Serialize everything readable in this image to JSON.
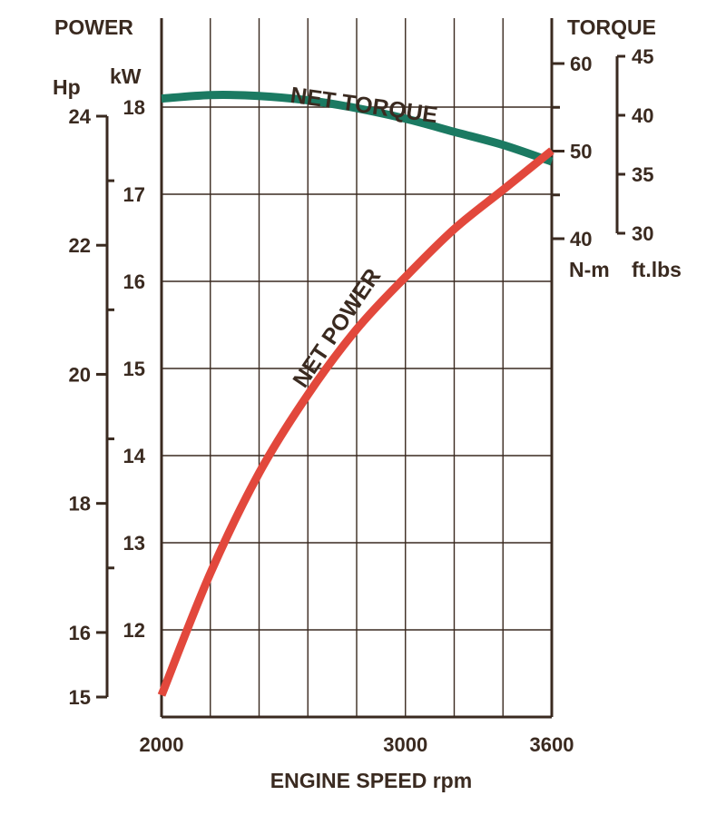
{
  "chart_data": {
    "type": "line",
    "xlabel": "ENGINE SPEED rpm",
    "xlim": [
      2000,
      3600
    ],
    "x_ticks": [
      2000,
      3000,
      3600
    ],
    "left_title": "POWER",
    "right_title": "TORQUE",
    "axes": {
      "hp": {
        "unit": "Hp",
        "ticks": [
          15,
          16,
          18,
          20,
          22,
          24
        ]
      },
      "kw": {
        "unit": "kW",
        "ylim": [
          11.2,
          18.8
        ],
        "ticks": [
          12,
          13,
          14,
          15,
          16,
          17,
          18
        ]
      },
      "nm": {
        "unit": "N-m",
        "ylim": [
          40,
          60
        ],
        "ticks": [
          40,
          50,
          60
        ]
      },
      "ftlbs": {
        "unit": "ft.lbs",
        "ylim": [
          30,
          45
        ],
        "ticks": [
          30,
          35,
          40,
          45
        ]
      }
    },
    "series": [
      {
        "name": "NET TORQUE",
        "axis": "nm",
        "color": "#1b7a62",
        "x": [
          2000,
          2200,
          2400,
          2600,
          2800,
          3000,
          3200,
          3400,
          3600
        ],
        "values": [
          56.0,
          56.4,
          56.3,
          55.8,
          54.9,
          53.7,
          52.2,
          50.7,
          48.8
        ]
      },
      {
        "name": "NET POWER",
        "axis": "kw",
        "color": "#e2483c",
        "x": [
          2000,
          2200,
          2400,
          2600,
          2800,
          3000,
          3200,
          3400,
          3600
        ],
        "values": [
          11.25,
          12.65,
          13.8,
          14.7,
          15.45,
          16.05,
          16.6,
          17.05,
          17.5
        ]
      }
    ],
    "grid": true
  }
}
